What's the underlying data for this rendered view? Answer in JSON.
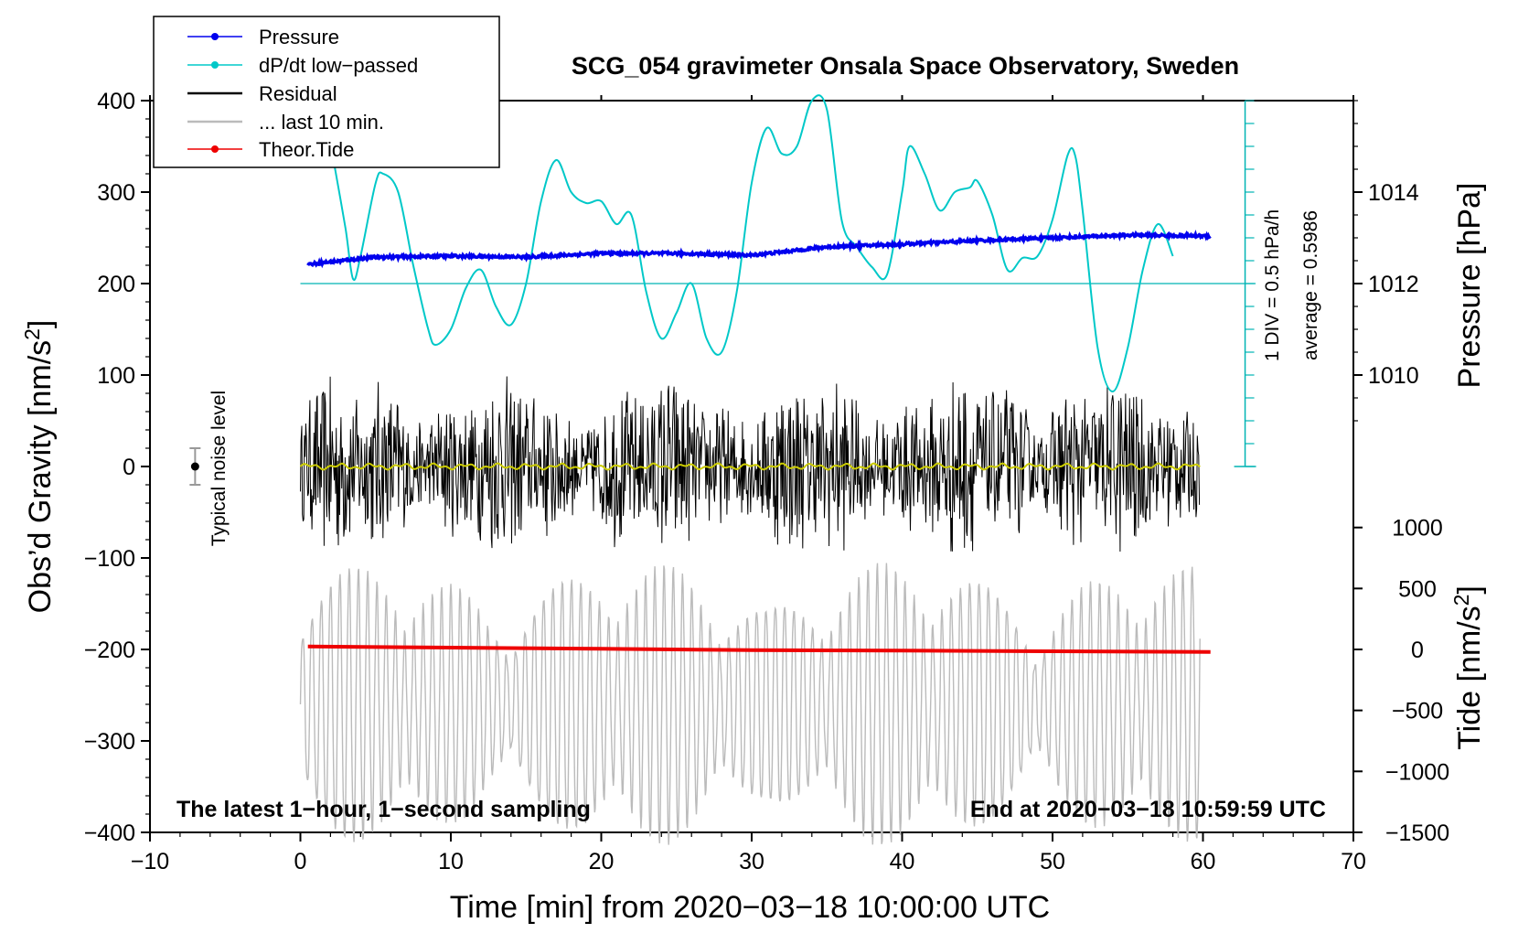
{
  "chart_data": {
    "type": "line",
    "title": "SCG_054 gravimeter Onsala Space Observatory, Sweden",
    "xlabel": "Time [min] from 2020−03−18 10:00:00 UTC",
    "ylabel_main": "Obs’d Gravity [nm/s",
    "ylabel_main_sup": "2",
    "ylabel_main_end": "]",
    "ylabel_pressure": "Pressure [hPa]",
    "ylabel_tide": "Tide [nm/s",
    "ylabel_tide_sup": "2",
    "ylabel_tide_end": "]",
    "xlim": [
      -10,
      70
    ],
    "ylim": [
      -400,
      400
    ],
    "x_ticks": [
      {
        "v": -10,
        "label": "−10"
      },
      {
        "v": 0,
        "label": "0"
      },
      {
        "v": 10,
        "label": "10"
      },
      {
        "v": 20,
        "label": "20"
      },
      {
        "v": 30,
        "label": "30"
      },
      {
        "v": 40,
        "label": "40"
      },
      {
        "v": 50,
        "label": "50"
      },
      {
        "v": 60,
        "label": "60"
      },
      {
        "v": 70,
        "label": "70"
      }
    ],
    "y_ticks": [
      {
        "v": 400,
        "label": "400"
      },
      {
        "v": 300,
        "label": "300"
      },
      {
        "v": 200,
        "label": "200"
      },
      {
        "v": 100,
        "label": "100"
      },
      {
        "v": 0,
        "label": "0"
      },
      {
        "v": -100,
        "label": "−100"
      },
      {
        "v": -200,
        "label": "−200"
      },
      {
        "v": -300,
        "label": "−300"
      },
      {
        "v": -400,
        "label": "−400"
      }
    ],
    "pressure_axis": {
      "ticks": [
        {
          "p": 1014,
          "label": "1014"
        },
        {
          "p": 1012,
          "label": "1012"
        },
        {
          "p": 1010,
          "label": "1010"
        }
      ],
      "ref_pressure": 1012,
      "ref_gravity": 200,
      "gravity_per_hPa": 50
    },
    "tide_axis": {
      "ticks": [
        {
          "t": 1000,
          "label": "1000"
        },
        {
          "t": 500,
          "label": "500"
        },
        {
          "t": 0,
          "label": "0"
        },
        {
          "t": -500,
          "label": "−500"
        },
        {
          "t": -1000,
          "label": "−1000"
        },
        {
          "t": -1500,
          "label": "−1500"
        }
      ],
      "ref_tide": 0,
      "ref_gravity": -200,
      "gravity_per_unit": 0.1333
    },
    "dpdt_scale": {
      "label1": "1 DIV = 0.5 hPa/h",
      "label2": "average = 0.5986",
      "baseline": 200,
      "top": 400,
      "bottom": 0
    },
    "legend": [
      {
        "label": "Pressure",
        "color": "#0000ee",
        "marker": true
      },
      {
        "label": "dP/dt low−passed",
        "color": "#00c8c8",
        "marker": true
      },
      {
        "label": "Residual",
        "color": "#000000",
        "marker": false
      },
      {
        "label": "... last 10 min.",
        "color": "#bbbbbb",
        "marker": false
      },
      {
        "label": "Theor.Tide",
        "color": "#ee0000",
        "marker": true
      }
    ],
    "annotations": {
      "bottom_left": "The latest 1−hour, 1−second sampling",
      "bottom_right": "End at 2020−03−18 10:59:59 UTC",
      "noise_label": "Typical noise level",
      "noise_center": {
        "x": -7,
        "y": 0,
        "half_range": 20
      }
    },
    "series": [
      {
        "name": "Pressure",
        "color": "#0000ee",
        "unit": "hPa",
        "x": [
          0.5,
          5,
          10,
          15,
          20,
          25,
          30,
          35,
          40,
          45,
          50,
          55,
          60.5
        ],
        "values": [
          1012.42,
          1012.58,
          1012.6,
          1012.58,
          1012.66,
          1012.66,
          1012.62,
          1012.8,
          1012.86,
          1012.94,
          1013.0,
          1013.06,
          1013.04
        ]
      },
      {
        "name": "dP/dt low-passed",
        "color": "#00c8c8",
        "x": [
          2.2,
          3,
          3.5,
          4,
          5,
          5.5,
          6.5,
          7.5,
          8.5,
          9,
          10,
          11,
          12,
          13,
          14,
          15,
          16,
          17,
          18,
          19,
          20,
          21,
          22,
          23,
          24,
          25,
          26,
          27,
          28,
          29,
          30,
          31,
          32,
          33,
          34,
          35,
          36,
          37,
          38,
          39,
          40,
          40.5,
          41.5,
          42.5,
          43.5,
          44.5,
          45,
          46,
          47,
          48,
          49,
          50,
          51,
          51.5,
          52,
          53,
          54,
          55,
          56,
          57,
          58
        ],
        "values": [
          335,
          260,
          205,
          230,
          310,
          320,
          300,
          220,
          150,
          133,
          150,
          195,
          215,
          175,
          155,
          200,
          290,
          335,
          300,
          288,
          290,
          265,
          275,
          190,
          140,
          168,
          200,
          140,
          125,
          190,
          310,
          370,
          342,
          350,
          420,
          390,
          268,
          240,
          218,
          210,
          300,
          350,
          320,
          280,
          300,
          305,
          312,
          275,
          215,
          228,
          230,
          270,
          340,
          340,
          280,
          130,
          82,
          130,
          215,
          265,
          230
        ]
      },
      {
        "name": "Theor.Tide",
        "color": "#ee0000",
        "unit": "nm/s2",
        "x": [
          0.5,
          10,
          20,
          30,
          40,
          50,
          60.5
        ],
        "values": [
          25,
          15,
          5,
          -5,
          -10,
          -15,
          -20
        ]
      }
    ]
  }
}
